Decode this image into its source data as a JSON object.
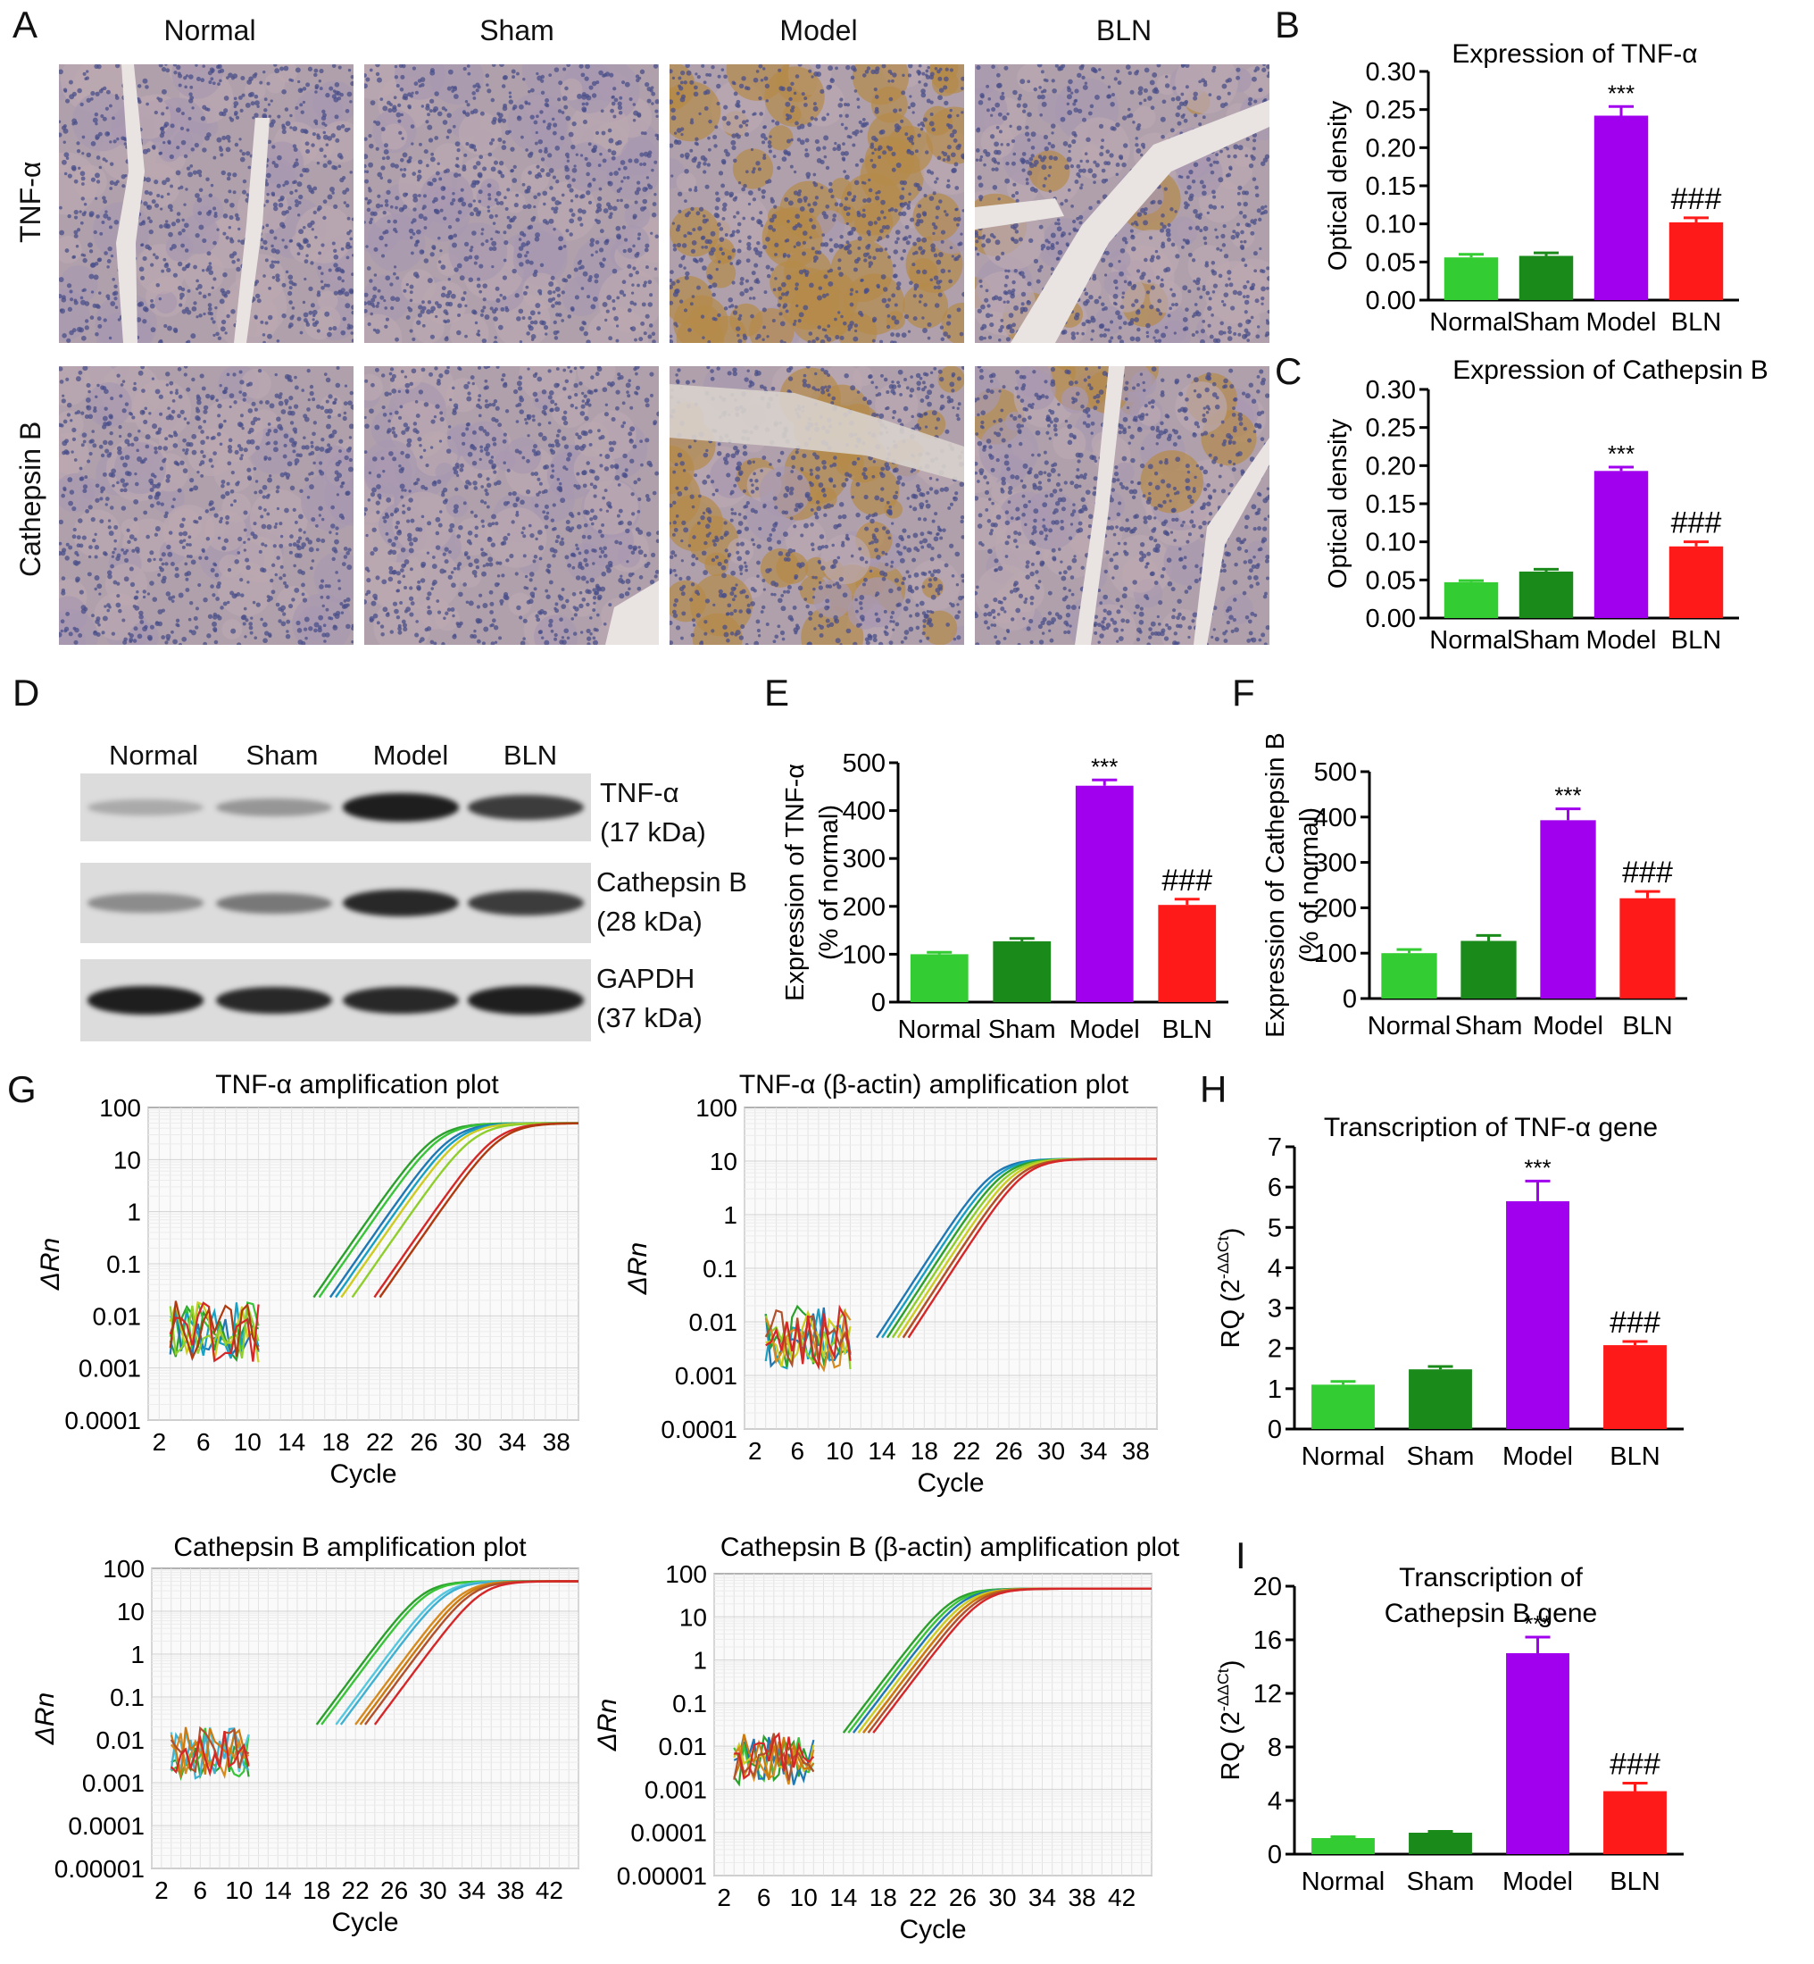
{
  "panels": {
    "A": "A",
    "B": "B",
    "C": "C",
    "D": "D",
    "E": "E",
    "F": "F",
    "G": "G",
    "H": "H",
    "I": "I"
  },
  "ihc": {
    "columns": [
      "Normal",
      "Sham",
      "Model",
      "BLN"
    ],
    "rows": [
      "TNF-α",
      "Cathepsin B"
    ]
  },
  "western": {
    "lanes": [
      "Normal",
      "Sham",
      "Model",
      "BLN"
    ],
    "bands": [
      {
        "name": "TNF-α",
        "kda": "(17 kDa)",
        "intensities": [
          0.25,
          0.35,
          0.95,
          0.8
        ]
      },
      {
        "name": "Cathepsin B",
        "kda": "(28 kDa)",
        "intensities": [
          0.4,
          0.5,
          0.9,
          0.8
        ]
      },
      {
        "name": "GAPDH",
        "kda": "(37 kDa)",
        "intensities": [
          0.95,
          0.9,
          0.9,
          0.95
        ]
      }
    ]
  },
  "colors": {
    "normal": "#33cc33",
    "sham": "#1a8a1a",
    "model": "#a000ee",
    "bln": "#ff1a1a"
  },
  "chart_data": [
    {
      "id": "B",
      "type": "bar",
      "title": "Expression of TNF-α",
      "ylabel": "Optical density",
      "categories": [
        "Normal",
        "Sham",
        "Model",
        "BLN"
      ],
      "values": [
        0.056,
        0.058,
        0.242,
        0.102
      ],
      "errors": [
        0.004,
        0.004,
        0.012,
        0.006
      ],
      "ylim": [
        0,
        0.3
      ],
      "yticks": [
        "0.00",
        "0.05",
        "0.10",
        "0.15",
        "0.20",
        "0.25",
        "0.30"
      ],
      "annotations": [
        "",
        "",
        "***",
        "###"
      ]
    },
    {
      "id": "C",
      "type": "bar",
      "title": "Expression of Cathepsin B",
      "ylabel": "Optical density",
      "categories": [
        "Normal",
        "Sham",
        "Model",
        "BLN"
      ],
      "values": [
        0.047,
        0.061,
        0.193,
        0.094
      ],
      "errors": [
        0.002,
        0.003,
        0.005,
        0.006
      ],
      "ylim": [
        0,
        0.3
      ],
      "yticks": [
        "0.00",
        "0.05",
        "0.10",
        "0.15",
        "0.20",
        "0.25",
        "0.30"
      ],
      "annotations": [
        "",
        "",
        "***",
        "###"
      ]
    },
    {
      "id": "E",
      "type": "bar",
      "ylabel_line1": "Expression of TNF-α",
      "ylabel_line2": "(% of normal)",
      "categories": [
        "Normal",
        "Sham",
        "Model",
        "BLN"
      ],
      "values": [
        100,
        127,
        452,
        203
      ],
      "errors": [
        4,
        6,
        12,
        12
      ],
      "ylim": [
        0,
        500
      ],
      "yticks": [
        "0",
        "100",
        "200",
        "300",
        "400",
        "500"
      ],
      "annotations": [
        "",
        "",
        "***",
        "###"
      ]
    },
    {
      "id": "F",
      "type": "bar",
      "ylabel_line1": "Expression of Cathepsin B",
      "ylabel_line2": "(% of normal)",
      "categories": [
        "Normal",
        "Sham",
        "Model",
        "BLN"
      ],
      "values": [
        100,
        127,
        393,
        221
      ],
      "errors": [
        8,
        12,
        25,
        15
      ],
      "ylim": [
        0,
        500
      ],
      "yticks": [
        "0",
        "100",
        "200",
        "300",
        "400",
        "500"
      ],
      "annotations": [
        "",
        "",
        "***",
        "###"
      ]
    },
    {
      "id": "H",
      "type": "bar",
      "title": "Transcription of TNF-α gene",
      "ylabel": "RQ (2",
      "ylabel_sup": "-ΔΔCt",
      "ylabel_end": ")",
      "categories": [
        "Normal",
        "Sham",
        "Model",
        "BLN"
      ],
      "values": [
        1.1,
        1.48,
        5.65,
        2.08
      ],
      "errors": [
        0.08,
        0.07,
        0.5,
        0.09
      ],
      "ylim": [
        0,
        7
      ],
      "yticks": [
        "0",
        "1",
        "2",
        "3",
        "4",
        "5",
        "6",
        "7"
      ],
      "annotations": [
        "",
        "",
        "***",
        "###"
      ]
    },
    {
      "id": "I",
      "type": "bar",
      "title_line1": "Transcription of",
      "title_line2": "Cathepsin B gene",
      "ylabel": "RQ (2",
      "ylabel_sup": "-ΔΔCt",
      "ylabel_end": ")",
      "categories": [
        "Normal",
        "Sham",
        "Model",
        "BLN"
      ],
      "values": [
        1.2,
        1.6,
        15.0,
        4.7
      ],
      "errors": [
        0.1,
        0.1,
        1.2,
        0.6
      ],
      "ylim": [
        0,
        20
      ],
      "yticks": [
        "0",
        "4",
        "8",
        "12",
        "16",
        "20"
      ],
      "annotations": [
        "",
        "",
        "***",
        "###"
      ]
    },
    {
      "id": "G1",
      "type": "line",
      "title": "TNF-α amplification plot",
      "xlabel": "Cycle",
      "ylabel": "ΔRn",
      "ylog": true,
      "yticks": [
        "100",
        "10",
        "1",
        "0.1",
        "0.01",
        "0.001",
        "0.0001"
      ],
      "xticks": [
        "2",
        "6",
        "10",
        "14",
        "18",
        "22",
        "26",
        "30",
        "34",
        "38"
      ],
      "xlim": [
        1,
        40
      ],
      "plateau": 50,
      "curve_colors": [
        "#2ca02c",
        "#3ac43a",
        "#1f77b4",
        "#17a0c4",
        "#cccc22",
        "#8fce2c",
        "#d62728",
        "#b03a10"
      ],
      "ct_values": [
        19,
        19.5,
        20.5,
        21,
        21.5,
        22.5,
        24.5,
        25
      ]
    },
    {
      "id": "G2",
      "type": "line",
      "title": "TNF-α  (β-actin) amplification plot",
      "xlabel": "Cycle",
      "ylabel": "ΔRn",
      "ylog": true,
      "yticks": [
        "100",
        "10",
        "1",
        "0.1",
        "0.01",
        "0.001",
        "0.0001"
      ],
      "xticks": [
        "2",
        "6",
        "10",
        "14",
        "18",
        "22",
        "26",
        "30",
        "34",
        "38"
      ],
      "xlim": [
        1,
        40
      ],
      "plateau": 11,
      "curve_colors": [
        "#1f77b4",
        "#17a0c4",
        "#2ca02c",
        "#8fce2c",
        "#cccc22",
        "#d68a20",
        "#b0502c",
        "#d62728"
      ],
      "ct_values": [
        16.5,
        17,
        17.5,
        18,
        18.5,
        19,
        19,
        19.5
      ]
    },
    {
      "id": "G3",
      "type": "line",
      "title": "Cathepsin B amplification plot",
      "xlabel": "Cycle",
      "ylabel": "ΔRn",
      "ylog": true,
      "yticks": [
        "100",
        "10",
        "1",
        "0.1",
        "0.01",
        "0.001",
        "0.0001",
        "0.00001"
      ],
      "xticks": [
        "2",
        "6",
        "10",
        "14",
        "18",
        "22",
        "26",
        "30",
        "34",
        "38",
        "42"
      ],
      "xlim": [
        1,
        45
      ],
      "plateau": 50,
      "curve_colors": [
        "#2ca02c",
        "#3ac43a",
        "#55c8e0",
        "#40b0d0",
        "#d68a20",
        "#cc7a10",
        "#b0502c",
        "#d62728"
      ],
      "ct_values": [
        21,
        21.5,
        23,
        23.5,
        25,
        25.5,
        26,
        27
      ]
    },
    {
      "id": "G4",
      "type": "line",
      "title": "Cathepsin B  (β-actin) amplification plot",
      "xlabel": "Cycle",
      "ylabel": "ΔRn",
      "ylog": true,
      "yticks": [
        "100",
        "10",
        "1",
        "0.1",
        "0.01",
        "0.001",
        "0.0001",
        "0.00001"
      ],
      "xticks": [
        "2",
        "6",
        "10",
        "14",
        "18",
        "22",
        "26",
        "30",
        "34",
        "38",
        "42"
      ],
      "xlim": [
        1,
        45
      ],
      "plateau": 45,
      "curve_colors": [
        "#2ca02c",
        "#3ac43a",
        "#1f77b4",
        "#cccc22",
        "#d68a20",
        "#cc7a10",
        "#b0502c",
        "#d62728"
      ],
      "ct_values": [
        17,
        17.5,
        18,
        18.5,
        19,
        19,
        19.5,
        20
      ]
    }
  ]
}
